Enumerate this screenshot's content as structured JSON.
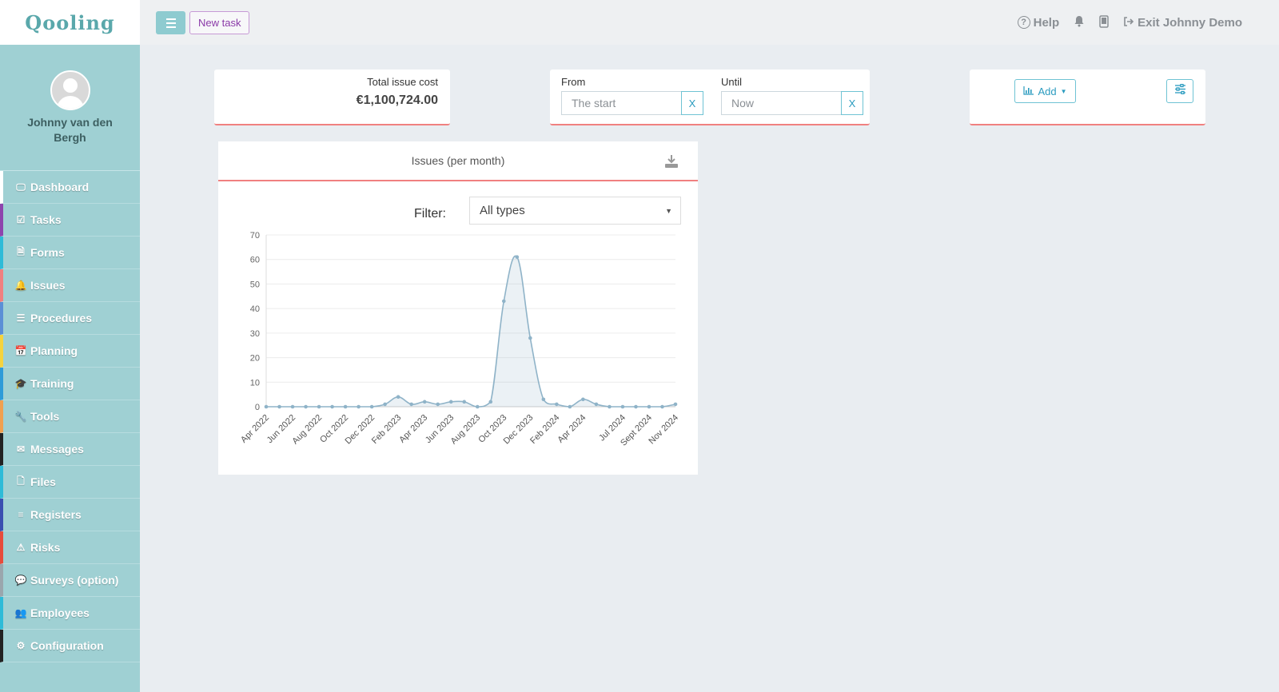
{
  "brand": {
    "logo_text": "Qooling"
  },
  "user": {
    "name": "Johnny van den Bergh"
  },
  "sidebar": {
    "items": [
      {
        "label": "Dashboard",
        "icon": "monitor-icon",
        "glyph": "🖵",
        "accent": "#ffffff"
      },
      {
        "label": "Tasks",
        "icon": "check-square-icon",
        "glyph": "☑",
        "accent": "#8e44ad"
      },
      {
        "label": "Forms",
        "icon": "document-icon",
        "glyph": "🗎",
        "accent": "#2ebbd8"
      },
      {
        "label": "Issues",
        "icon": "bell-icon",
        "glyph": "🔔",
        "accent": "#f08080"
      },
      {
        "label": "Procedures",
        "icon": "list-icon",
        "glyph": "☰",
        "accent": "#5b8fd6"
      },
      {
        "label": "Planning",
        "icon": "calendar-icon",
        "glyph": "📅",
        "accent": "#f5d33d"
      },
      {
        "label": "Training",
        "icon": "graduation-cap-icon",
        "glyph": "🎓",
        "accent": "#2e9bd8"
      },
      {
        "label": "Tools",
        "icon": "wrench-icon",
        "glyph": "🔧",
        "accent": "#f0a050"
      },
      {
        "label": "Messages",
        "icon": "envelope-icon",
        "glyph": "✉",
        "accent": "#222222"
      },
      {
        "label": "Files",
        "icon": "file-icon",
        "glyph": "🗋",
        "accent": "#2ebbd8"
      },
      {
        "label": "Registers",
        "icon": "list-icon",
        "glyph": "≡",
        "accent": "#3a4fb0"
      },
      {
        "label": "Risks",
        "icon": "warning-icon",
        "glyph": "⚠",
        "accent": "#e74c3c"
      },
      {
        "label": "Surveys (option)",
        "icon": "comment-icon",
        "glyph": "💬",
        "accent": "#9aa6ad"
      },
      {
        "label": "Employees",
        "icon": "users-icon",
        "glyph": "👥",
        "accent": "#2ebbd8"
      },
      {
        "label": "Configuration",
        "icon": "gear-icon",
        "glyph": "⚙",
        "accent": "#222222"
      }
    ]
  },
  "topbar": {
    "new_task_label": "New task",
    "help_label": "Help",
    "exit_label": "Exit Johnny Demo"
  },
  "cost_card": {
    "label": "Total issue cost",
    "value": "€1,100,724.00"
  },
  "date_filter": {
    "from_label": "From",
    "from_placeholder": "The start",
    "until_label": "Until",
    "until_placeholder": "Now",
    "clear_label": "X"
  },
  "add_card": {
    "add_label": "Add"
  },
  "chart_panel": {
    "title": "Issues (per month)",
    "filter_label": "Filter:",
    "filter_value": "All types"
  },
  "chart_data": {
    "type": "area",
    "title": "Issues (per month)",
    "xlabel": "",
    "ylabel": "",
    "ylim": [
      0,
      70
    ],
    "yticks": [
      0,
      10,
      20,
      30,
      40,
      50,
      60,
      70
    ],
    "grid": true,
    "legend": "none",
    "color": "#8fb3c8",
    "x": [
      "Apr 2022",
      "May 2022",
      "Jun 2022",
      "Jul 2022",
      "Aug 2022",
      "Sep 2022",
      "Oct 2022",
      "Nov 2022",
      "Dec 2022",
      "Jan 2023",
      "Feb 2023",
      "Mar 2023",
      "Apr 2023",
      "May 2023",
      "Jun 2023",
      "Jul 2023",
      "Aug 2023",
      "Sep 2023",
      "Oct 2023",
      "Nov 2023",
      "Dec 2023",
      "Jan 2024",
      "Feb 2024",
      "Mar 2024",
      "Apr 2024",
      "May 2024",
      "Jun 2024",
      "Jul 2024",
      "Aug 2024",
      "Sept 2024",
      "Oct 2024",
      "Nov 2024"
    ],
    "x_tick_labels": [
      "Apr 2022",
      "Jun 2022",
      "Aug 2022",
      "Oct 2022",
      "Dec 2022",
      "Feb 2023",
      "Apr 2023",
      "Jun 2023",
      "Aug 2023",
      "Oct 2023",
      "Dec 2023",
      "Feb 2024",
      "Apr 2024",
      "Jul 2024",
      "Sept 2024",
      "Nov 2024"
    ],
    "values": [
      0,
      0,
      0,
      0,
      0,
      0,
      0,
      0,
      0,
      1,
      4,
      1,
      2,
      1,
      2,
      2,
      0,
      2,
      43,
      61,
      28,
      3,
      1,
      0,
      3,
      1,
      0,
      0,
      0,
      0,
      0,
      1
    ]
  }
}
